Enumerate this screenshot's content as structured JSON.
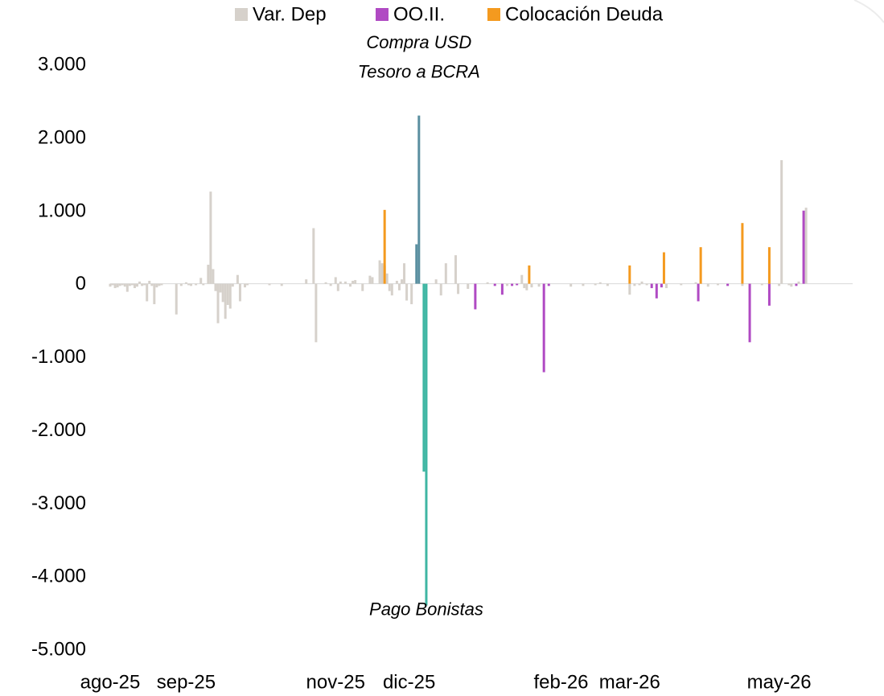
{
  "chart_data": {
    "type": "bar",
    "ylim": [
      -5000,
      3000
    ],
    "yticks": [
      3000,
      2000,
      1000,
      0,
      -1000,
      -2000,
      -3000,
      -4000,
      -5000
    ],
    "ytick_labels": [
      "3.000",
      "2.000",
      "1.000",
      "0",
      "-1.000",
      "-2.000",
      "-3.000",
      "-4.000",
      "-5.000"
    ],
    "xlim": [
      "2025-08-01",
      "2026-05-31"
    ],
    "xticks": [
      "2025-08-01",
      "2025-09-01",
      "2025-11-01",
      "2025-12-01",
      "2026-02-01",
      "2026-03-01",
      "2026-05-01"
    ],
    "xtick_labels": [
      "ago-25",
      "sep-25",
      "nov-25",
      "dic-25",
      "feb-26",
      "mar-26",
      "may-26"
    ],
    "legend_position": "top",
    "series": [
      {
        "name": "Var. Dep",
        "color": "#d6d1cb",
        "points": [
          [
            "2025-08-01",
            -40
          ],
          [
            "2025-08-02",
            -20
          ],
          [
            "2025-08-03",
            -60
          ],
          [
            "2025-08-04",
            -50
          ],
          [
            "2025-08-05",
            -30
          ],
          [
            "2025-08-06",
            -20
          ],
          [
            "2025-08-07",
            -40
          ],
          [
            "2025-08-08",
            -110
          ],
          [
            "2025-08-09",
            -30
          ],
          [
            "2025-08-10",
            -20
          ],
          [
            "2025-08-11",
            -60
          ],
          [
            "2025-08-12",
            -40
          ],
          [
            "2025-08-13",
            30
          ],
          [
            "2025-08-14",
            -30
          ],
          [
            "2025-08-15",
            -20
          ],
          [
            "2025-08-16",
            -240
          ],
          [
            "2025-08-17",
            40
          ],
          [
            "2025-08-18",
            -30
          ],
          [
            "2025-08-19",
            -280
          ],
          [
            "2025-08-20",
            -50
          ],
          [
            "2025-08-21",
            -30
          ],
          [
            "2025-08-22",
            -20
          ],
          [
            "2025-08-28",
            -420
          ],
          [
            "2025-08-30",
            -30
          ],
          [
            "2025-09-01",
            20
          ],
          [
            "2025-09-02",
            -20
          ],
          [
            "2025-09-03",
            -30
          ],
          [
            "2025-09-05",
            -20
          ],
          [
            "2025-09-07",
            80
          ],
          [
            "2025-09-08",
            -20
          ],
          [
            "2025-09-10",
            260
          ],
          [
            "2025-09-11",
            1260
          ],
          [
            "2025-09-12",
            200
          ],
          [
            "2025-09-13",
            -100
          ],
          [
            "2025-09-14",
            -540
          ],
          [
            "2025-09-15",
            -120
          ],
          [
            "2025-09-16",
            -250
          ],
          [
            "2025-09-17",
            -480
          ],
          [
            "2025-09-18",
            -290
          ],
          [
            "2025-09-19",
            -340
          ],
          [
            "2025-09-20",
            -40
          ],
          [
            "2025-09-22",
            120
          ],
          [
            "2025-09-23",
            -240
          ],
          [
            "2025-09-25",
            -50
          ],
          [
            "2025-09-26",
            -20
          ],
          [
            "2025-10-05",
            -20
          ],
          [
            "2025-10-10",
            -30
          ],
          [
            "2025-10-20",
            60
          ],
          [
            "2025-10-23",
            760
          ],
          [
            "2025-10-24",
            -800
          ],
          [
            "2025-10-28",
            20
          ],
          [
            "2025-10-30",
            -30
          ],
          [
            "2025-11-01",
            90
          ],
          [
            "2025-11-02",
            -100
          ],
          [
            "2025-11-03",
            30
          ],
          [
            "2025-11-05",
            30
          ],
          [
            "2025-11-07",
            -40
          ],
          [
            "2025-11-08",
            40
          ],
          [
            "2025-11-09",
            50
          ],
          [
            "2025-11-12",
            -100
          ],
          [
            "2025-11-15",
            110
          ],
          [
            "2025-11-16",
            90
          ],
          [
            "2025-11-19",
            320
          ],
          [
            "2025-11-20",
            280
          ],
          [
            "2025-11-21",
            250
          ],
          [
            "2025-11-22",
            140
          ],
          [
            "2025-11-23",
            -100
          ],
          [
            "2025-11-24",
            -160
          ],
          [
            "2025-11-26",
            40
          ],
          [
            "2025-11-27",
            -90
          ],
          [
            "2025-11-28",
            60
          ],
          [
            "2025-11-29",
            280
          ],
          [
            "2025-11-30",
            -230
          ],
          [
            "2025-12-02",
            -280
          ],
          [
            "2025-12-12",
            60
          ],
          [
            "2025-12-14",
            -160
          ],
          [
            "2025-12-16",
            280
          ],
          [
            "2025-12-20",
            390
          ],
          [
            "2025-12-21",
            -140
          ],
          [
            "2025-12-25",
            -70
          ],
          [
            "2026-01-02",
            20
          ],
          [
            "2026-01-10",
            -30
          ],
          [
            "2026-01-16",
            120
          ],
          [
            "2026-01-17",
            -60
          ],
          [
            "2026-01-18",
            -90
          ],
          [
            "2026-01-20",
            -50
          ],
          [
            "2026-01-23",
            -40
          ],
          [
            "2026-02-05",
            -40
          ],
          [
            "2026-02-10",
            -30
          ],
          [
            "2026-02-15",
            -20
          ],
          [
            "2026-02-17",
            20
          ],
          [
            "2026-02-20",
            -30
          ],
          [
            "2026-03-01",
            -150
          ],
          [
            "2026-03-03",
            -30
          ],
          [
            "2026-03-05",
            -20
          ],
          [
            "2026-03-06",
            30
          ],
          [
            "2026-03-08",
            -20
          ],
          [
            "2026-03-16",
            -60
          ],
          [
            "2026-03-22",
            -20
          ],
          [
            "2026-03-28",
            20
          ],
          [
            "2026-04-02",
            -40
          ],
          [
            "2026-04-06",
            -20
          ],
          [
            "2026-04-16",
            -30
          ],
          [
            "2026-04-24",
            -20
          ],
          [
            "2026-05-01",
            -30
          ],
          [
            "2026-05-02",
            1690
          ],
          [
            "2026-05-05",
            -20
          ],
          [
            "2026-05-06",
            -40
          ],
          [
            "2026-05-09",
            30
          ],
          [
            "2026-05-12",
            1040
          ]
        ]
      },
      {
        "name": "OO.II.",
        "color": "#b04ac3",
        "points": [
          [
            "2025-12-28",
            -350
          ],
          [
            "2026-01-05",
            -30
          ],
          [
            "2026-01-08",
            -150
          ],
          [
            "2026-01-12",
            -30
          ],
          [
            "2026-01-14",
            -20
          ],
          [
            "2026-01-25",
            -1210
          ],
          [
            "2026-01-27",
            -30
          ],
          [
            "2026-03-10",
            -60
          ],
          [
            "2026-03-12",
            -200
          ],
          [
            "2026-03-14",
            -50
          ],
          [
            "2026-03-29",
            -240
          ],
          [
            "2026-04-10",
            -30
          ],
          [
            "2026-04-19",
            -800
          ],
          [
            "2026-04-27",
            -300
          ],
          [
            "2026-05-08",
            -30
          ],
          [
            "2026-05-11",
            1000
          ]
        ]
      },
      {
        "name": "Colocación Deuda",
        "color": "#f49a1f",
        "points": [
          [
            "2025-11-21",
            1010
          ],
          [
            "2026-01-19",
            250
          ],
          [
            "2026-03-01",
            250
          ],
          [
            "2026-03-15",
            430
          ],
          [
            "2026-03-30",
            500
          ],
          [
            "2026-04-16",
            830
          ],
          [
            "2026-04-27",
            500
          ]
        ]
      },
      {
        "color": "#5a8fa0",
        "points": [
          [
            "2025-12-04",
            540
          ],
          [
            "2025-12-05",
            2300
          ]
        ]
      },
      {
        "color": "#3fb6a3",
        "points": [
          [
            "2025-12-07",
            -2570
          ],
          [
            "2025-12-08",
            -4400
          ]
        ]
      }
    ],
    "annotations": [
      {
        "text": "Compra USD",
        "x": "2025-12-05",
        "y": 3300
      },
      {
        "text": "Tesoro a BCRA",
        "x": "2025-12-05",
        "y": 2900
      },
      {
        "text": "Pago Bonistas",
        "x": "2025-12-08",
        "y": -4450
      }
    ]
  }
}
